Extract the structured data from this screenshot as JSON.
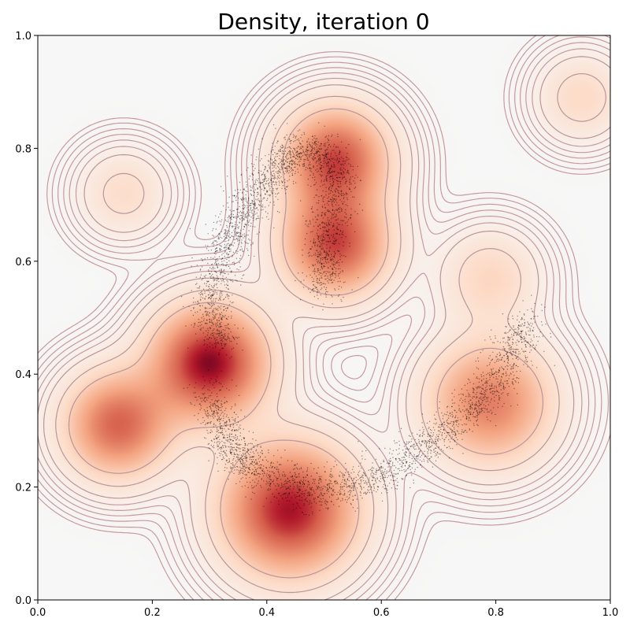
{
  "chart_data": {
    "type": "heatmap",
    "title": "Density, iteration 0",
    "xlabel": "",
    "ylabel": "",
    "xlim": [
      0,
      1
    ],
    "ylim": [
      0,
      1
    ],
    "xticks": [
      0.0,
      0.2,
      0.4,
      0.6,
      0.8,
      1.0
    ],
    "yticks": [
      0.0,
      0.2,
      0.4,
      0.6,
      0.8,
      1.0
    ],
    "xtick_labels": [
      "0.0",
      "0.2",
      "0.4",
      "0.6",
      "0.8",
      "1.0"
    ],
    "ytick_labels": [
      "0.0",
      "0.2",
      "0.4",
      "0.6",
      "0.8",
      "1.0"
    ],
    "colormap": "RdBu_r (white to dark red)",
    "grid": false,
    "density_components": [
      {
        "center": [
          0.3,
          0.42
        ],
        "spread": 0.065,
        "weight": 1.0
      },
      {
        "center": [
          0.44,
          0.16
        ],
        "spread": 0.075,
        "weight": 0.95
      },
      {
        "center": [
          0.52,
          0.78
        ],
        "spread": 0.06,
        "weight": 0.8
      },
      {
        "center": [
          0.52,
          0.63
        ],
        "spread": 0.06,
        "weight": 0.8
      },
      {
        "center": [
          0.14,
          0.31
        ],
        "spread": 0.06,
        "weight": 0.72
      },
      {
        "center": [
          0.79,
          0.35
        ],
        "spread": 0.07,
        "weight": 0.62
      },
      {
        "center": [
          0.15,
          0.72
        ],
        "spread": 0.05,
        "weight": 0.18
      },
      {
        "center": [
          0.95,
          0.89
        ],
        "spread": 0.05,
        "weight": 0.2
      },
      {
        "center": [
          0.79,
          0.57
        ],
        "spread": 0.055,
        "weight": 0.22
      }
    ],
    "contour_levels_solid": [
      0.07,
      0.14,
      0.26
    ],
    "contour_levels_dashed": [
      0.045,
      0.03,
      0.02,
      0.013,
      0.008,
      0.005
    ],
    "sample_path": [
      [
        0.32,
        0.45
      ],
      [
        0.3,
        0.53
      ],
      [
        0.33,
        0.63
      ],
      [
        0.38,
        0.72
      ],
      [
        0.43,
        0.78
      ],
      [
        0.49,
        0.8
      ],
      [
        0.53,
        0.74
      ],
      [
        0.5,
        0.64
      ],
      [
        0.5,
        0.55
      ]
    ],
    "sample_path_2": [
      [
        0.3,
        0.37
      ],
      [
        0.33,
        0.28
      ],
      [
        0.38,
        0.23
      ],
      [
        0.47,
        0.19
      ],
      [
        0.58,
        0.21
      ],
      [
        0.68,
        0.27
      ],
      [
        0.76,
        0.34
      ],
      [
        0.82,
        0.42
      ],
      [
        0.86,
        0.5
      ]
    ]
  }
}
